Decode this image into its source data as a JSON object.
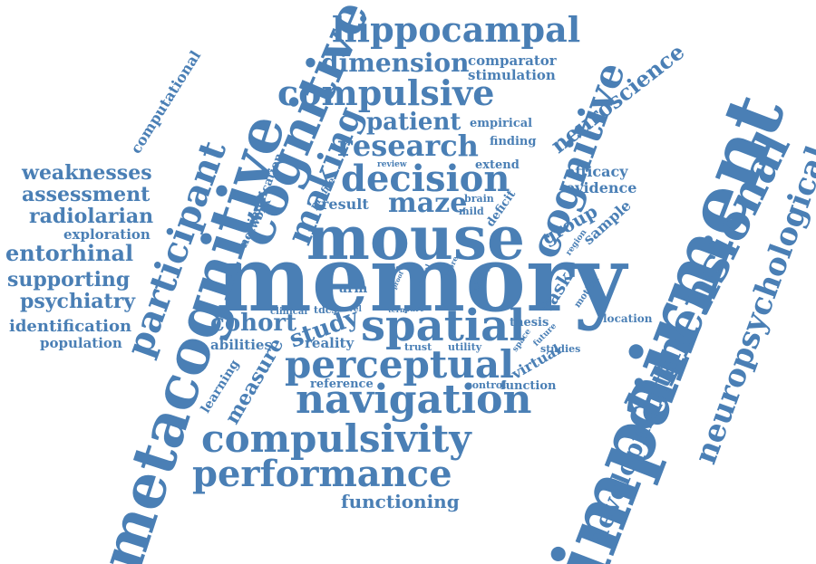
{
  "cloud": {
    "color": "#4a7fb5",
    "words": {
      "memory": "memory",
      "impairment": "impairment",
      "metacognitive": "metacognitive",
      "cognitive_top": "cognitive",
      "cognitive_right": "cognitive",
      "mouse": "mouse",
      "dimensional": "dimensional",
      "participant": "participant",
      "neuropsychological": "neuropsychological",
      "spatial": "spatial",
      "navigation": "navigation",
      "perceptual": "perceptual",
      "compulsivity": "compulsivity",
      "performance": "performance",
      "decision": "decision",
      "compulsive": "compulsive",
      "hippocampal": "hippocampal",
      "making": "making",
      "developmental": "developmental",
      "research": "research",
      "dimension": "dimension",
      "neuroscience": "neuroscience",
      "patient": "patient",
      "maze": "maze",
      "cohort": "cohort",
      "study": "study",
      "measure": "measure",
      "weaknesses": "weaknesses",
      "assessment": "assessment",
      "radiolarian": "radiolarian",
      "entorhinal": "entorhinal",
      "supporting": "supporting",
      "psychiatry": "psychiatry",
      "identification": "identification",
      "population": "population",
      "exploration": "exploration",
      "computational": "computational",
      "functioning": "functioning",
      "group": "group",
      "task": "task",
      "sample": "sample",
      "comparator": "comparator",
      "stimulation": "stimulation",
      "empirical": "empirical",
      "finding": "finding",
      "extend": "extend",
      "efficacy": "efficacy",
      "evidence": "evidence",
      "result": "result",
      "learning": "learning",
      "abilities": "abilities",
      "reality": "reality",
      "reference": "reference",
      "virtual": "virtual",
      "thesis": "thesis",
      "location": "location",
      "network": "network",
      "implication": "implication",
      "profile": "profile",
      "review": "review",
      "brain": "brain",
      "mild": "mild",
      "deficit": "deficit",
      "region": "region",
      "arm": "arm",
      "clinical": "clinical",
      "tdcs": "tdcs",
      "novel": "novel",
      "term": "term",
      "part": "part",
      "trust": "trust",
      "utility": "utility",
      "control": "control",
      "function": "function",
      "studies": "studies",
      "space": "space",
      "future": "future",
      "motion": "motion",
      "ability": "ability",
      "radial": "radial",
      "more": "more",
      "proof": "proof",
      "act": "act"
    }
  }
}
